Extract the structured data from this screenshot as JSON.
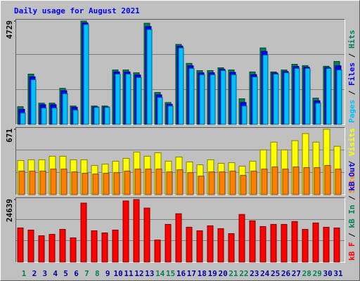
{
  "chart_data": [
    {
      "type": "bar",
      "title": "Daily usage for August 2021",
      "ylim": [
        0,
        4729
      ],
      "yticks": [
        4729
      ],
      "legend_separator": " / ",
      "series": [
        {
          "name": "Hits",
          "color": "#00805c",
          "values": [
            810,
            2300,
            970,
            970,
            1650,
            840,
            4729,
            840,
            840,
            2490,
            2490,
            2360,
            4630,
            1460,
            1000,
            3660,
            2790,
            2460,
            2460,
            2590,
            2490,
            1170,
            2400,
            3500,
            2400,
            2490,
            2750,
            2690,
            1200,
            2660,
            2880
          ]
        },
        {
          "name": "Files",
          "color": "#0000ff",
          "values": [
            690,
            2180,
            900,
            900,
            1540,
            780,
            4650,
            800,
            800,
            2400,
            2400,
            2260,
            4480,
            1350,
            920,
            3580,
            2680,
            2360,
            2360,
            2520,
            2380,
            1000,
            2280,
            3340,
            2350,
            2420,
            2650,
            2620,
            1080,
            2600,
            2680
          ]
        },
        {
          "name": "Pages",
          "color": "#00c0ff",
          "values": [
            520,
            2040,
            750,
            750,
            1400,
            650,
            4570,
            780,
            780,
            2300,
            2300,
            2140,
            4340,
            1230,
            840,
            3500,
            2560,
            2270,
            2270,
            2460,
            2270,
            840,
            2170,
            3170,
            2300,
            2360,
            2560,
            2560,
            970,
            2560,
            2490
          ]
        }
      ]
    },
    {
      "type": "bar",
      "ylim": [
        0,
        671
      ],
      "yticks": [
        671
      ],
      "legend_separator": " / ",
      "series": [
        {
          "name": "Visits",
          "color": "#ffff00",
          "values": [
            350,
            357,
            357,
            394,
            394,
            357,
            357,
            299,
            313,
            343,
            372,
            437,
            394,
            430,
            343,
            386,
            335,
            306,
            357,
            321,
            328,
            292,
            343,
            459,
            539,
            459,
            554,
            627,
            539,
            671,
            496
          ]
        },
        {
          "name": "Sites",
          "color": "#ff8000",
          "values": [
            241,
            241,
            241,
            262,
            262,
            233,
            219,
            211,
            219,
            226,
            241,
            262,
            262,
            262,
            233,
            255,
            226,
            190,
            233,
            233,
            241,
            197,
            241,
            262,
            284,
            262,
            284,
            277,
            277,
            299,
            262
          ]
        }
      ]
    },
    {
      "type": "bar",
      "ylim": [
        0,
        24639
      ],
      "yticks": [
        24639
      ],
      "legend_separator": " / ",
      "categories": [
        "1",
        "2",
        "3",
        "4",
        "5",
        "6",
        "7",
        "8",
        "9",
        "10",
        "11",
        "12",
        "13",
        "14",
        "15",
        "16",
        "17",
        "18",
        "19",
        "20",
        "21",
        "22",
        "23",
        "24",
        "25",
        "26",
        "27",
        "28",
        "29",
        "30",
        "31"
      ],
      "category_colors": [
        "#00805c",
        "#0000a0",
        "#0000a0",
        "#0000a0",
        "#0000a0",
        "#0000a0",
        "#00805c",
        "#00805c",
        "#0000a0",
        "#0000a0",
        "#0000a0",
        "#0000a0",
        "#0000a0",
        "#00805c",
        "#00805c",
        "#0000a0",
        "#0000a0",
        "#0000a0",
        "#0000a0",
        "#0000a0",
        "#00805c",
        "#00805c",
        "#0000a0",
        "#0000a0",
        "#0000a0",
        "#0000a0",
        "#0000a0",
        "#00805c",
        "#00805c",
        "#0000a0",
        "#0000a0"
      ],
      "series": [
        {
          "name": "kB F",
          "color": "#ff0000",
          "values": [
            13440,
            12600,
            10360,
            10920,
            12880,
            9520,
            23240,
            12320,
            11480,
            12600,
            24080,
            24639,
            21280,
            8680,
            14840,
            19040,
            13720,
            12320,
            14280,
            13160,
            11200,
            18760,
            16240,
            14000,
            14840,
            14840,
            15960,
            12880,
            15400,
            13720,
            13440
          ]
        }
      ],
      "legend_entries": [
        {
          "name": "kB In",
          "color": "#00805c"
        },
        {
          "name": "kB Out",
          "color": "#0000ff"
        }
      ]
    }
  ]
}
